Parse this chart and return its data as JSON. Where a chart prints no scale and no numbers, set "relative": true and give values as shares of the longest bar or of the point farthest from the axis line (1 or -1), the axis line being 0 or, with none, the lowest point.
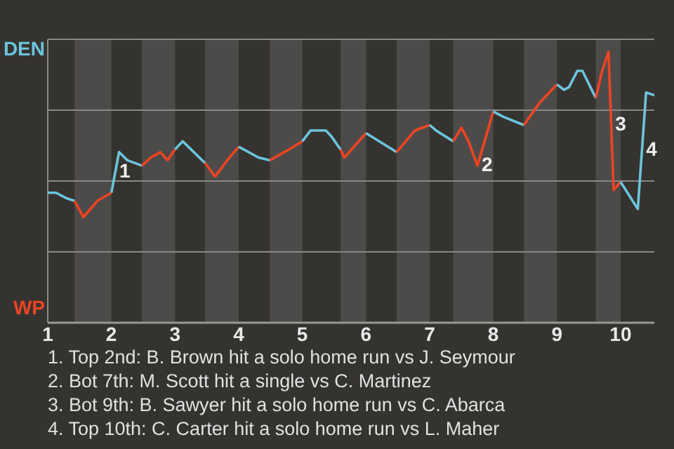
{
  "chart_data": {
    "type": "line",
    "relative": true,
    "xlim": [
      1,
      10.53
    ],
    "xticks": [
      1,
      2,
      3,
      4,
      5,
      6,
      7,
      8,
      9,
      10
    ],
    "grid": "y",
    "legend": "left",
    "marker": "none",
    "line_style": "solid",
    "bands": [
      {
        "axis": "x",
        "from": 1.42,
        "to": 2,
        "color": "#4d4b49"
      },
      {
        "axis": "x",
        "from": 2.48,
        "to": 3,
        "color": "#4d4b49"
      },
      {
        "axis": "x",
        "from": 3.47,
        "to": 4,
        "color": "#4d4b49"
      },
      {
        "axis": "x",
        "from": 4.49,
        "to": 5,
        "color": "#4d4b49"
      },
      {
        "axis": "x",
        "from": 5.6,
        "to": 6,
        "color": "#4d4b49"
      },
      {
        "axis": "x",
        "from": 6.48,
        "to": 7,
        "color": "#4d4b49"
      },
      {
        "axis": "x",
        "from": 7.37,
        "to": 8,
        "color": "#4d4b49"
      },
      {
        "axis": "x",
        "from": 8.48,
        "to": 9,
        "color": "#4d4b49"
      },
      {
        "axis": "x",
        "from": 9.61,
        "to": 10,
        "color": "#4d4b49"
      }
    ],
    "series": [
      {
        "name": "DEN",
        "color": "#6cc4dc",
        "x": [
          1,
          1.13,
          1.29,
          1.42
        ],
        "values": [
          0.48,
          0.48,
          0.46,
          0.45
        ]
      },
      {
        "name": "WP",
        "color": "#ee4422",
        "x": [
          1.42,
          1.56,
          1.78,
          2
        ],
        "values": [
          0.45,
          0.39,
          0.45,
          0.48
        ]
      },
      {
        "color": "#6cc4dc",
        "x": [
          2,
          2.12,
          2.25,
          2.48
        ],
        "values": [
          0.48,
          0.63,
          0.6,
          0.58
        ]
      },
      {
        "color": "#ee4422",
        "x": [
          2.48,
          2.62,
          2.77,
          2.88,
          3
        ],
        "values": [
          0.58,
          0.61,
          0.63,
          0.6,
          0.64
        ]
      },
      {
        "color": "#6cc4dc",
        "x": [
          3,
          3.12,
          3.47
        ],
        "values": [
          0.64,
          0.67,
          0.59
        ]
      },
      {
        "color": "#ee4422",
        "x": [
          3.47,
          3.63,
          3.82,
          4
        ],
        "values": [
          0.59,
          0.54,
          0.6,
          0.65
        ]
      },
      {
        "color": "#6cc4dc",
        "x": [
          4,
          4.31,
          4.49
        ],
        "values": [
          0.65,
          0.61,
          0.6
        ]
      },
      {
        "color": "#ee4422",
        "x": [
          4.49,
          4.79,
          5
        ],
        "values": [
          0.6,
          0.64,
          0.67
        ]
      },
      {
        "color": "#6cc4dc",
        "x": [
          5,
          5.13,
          5.37,
          5.45,
          5.6
        ],
        "values": [
          0.67,
          0.71,
          0.71,
          0.69,
          0.64
        ]
      },
      {
        "color": "#ee4422",
        "x": [
          5.6,
          5.66,
          6
        ],
        "values": [
          0.64,
          0.61,
          0.7
        ]
      },
      {
        "color": "#6cc4dc",
        "x": [
          6,
          6.48
        ],
        "values": [
          0.7,
          0.63
        ]
      },
      {
        "color": "#ee4422",
        "x": [
          6.48,
          6.77,
          7
        ],
        "values": [
          0.63,
          0.71,
          0.73
        ]
      },
      {
        "color": "#6cc4dc",
        "x": [
          7,
          7.1,
          7.37
        ],
        "values": [
          0.73,
          0.71,
          0.67
        ]
      },
      {
        "color": "#ee4422",
        "x": [
          7.37,
          7.5,
          7.61,
          7.75,
          8
        ],
        "values": [
          0.67,
          0.72,
          0.67,
          0.58,
          0.78
        ]
      },
      {
        "color": "#6cc4dc",
        "x": [
          8,
          8.16,
          8.48
        ],
        "values": [
          0.78,
          0.76,
          0.73
        ]
      },
      {
        "color": "#ee4422",
        "x": [
          8.48,
          8.72,
          9
        ],
        "values": [
          0.73,
          0.81,
          0.88
        ]
      },
      {
        "color": "#6cc4dc",
        "x": [
          9,
          9.11,
          9.19,
          9.32,
          9.4,
          9.61
        ],
        "values": [
          0.88,
          0.86,
          0.87,
          0.93,
          0.93,
          0.83
        ]
      },
      {
        "color": "#ee4422",
        "x": [
          9.61,
          9.71,
          9.81,
          9.89,
          10
        ],
        "values": [
          0.83,
          0.93,
          1,
          0.49,
          0.52
        ]
      },
      {
        "color": "#6cc4dc",
        "x": [
          10,
          10.27,
          10.4,
          10.53
        ],
        "values": [
          0.52,
          0.42,
          0.85,
          0.84
        ]
      }
    ],
    "annotations": [
      {
        "text": "1",
        "x": 2.06,
        "y": 0.555
      },
      {
        "text": "2",
        "x": 7.75,
        "y": 0.58
      },
      {
        "text": "3",
        "x": 9.85,
        "y": 0.73
      },
      {
        "text": "4",
        "x": 10.335,
        "y": 0.635
      },
      "1. Top 2nd: B. Brown hit a solo home run vs J. Seymour",
      "2. Bot 7th: M. Scott hit a single vs C. Martinez",
      "3. Bot 9th: B. Sawyer hit a solo home run vs C. Abarca",
      "4. Top 10th: C. Carter hit a solo home run vs L. Maher"
    ]
  }
}
